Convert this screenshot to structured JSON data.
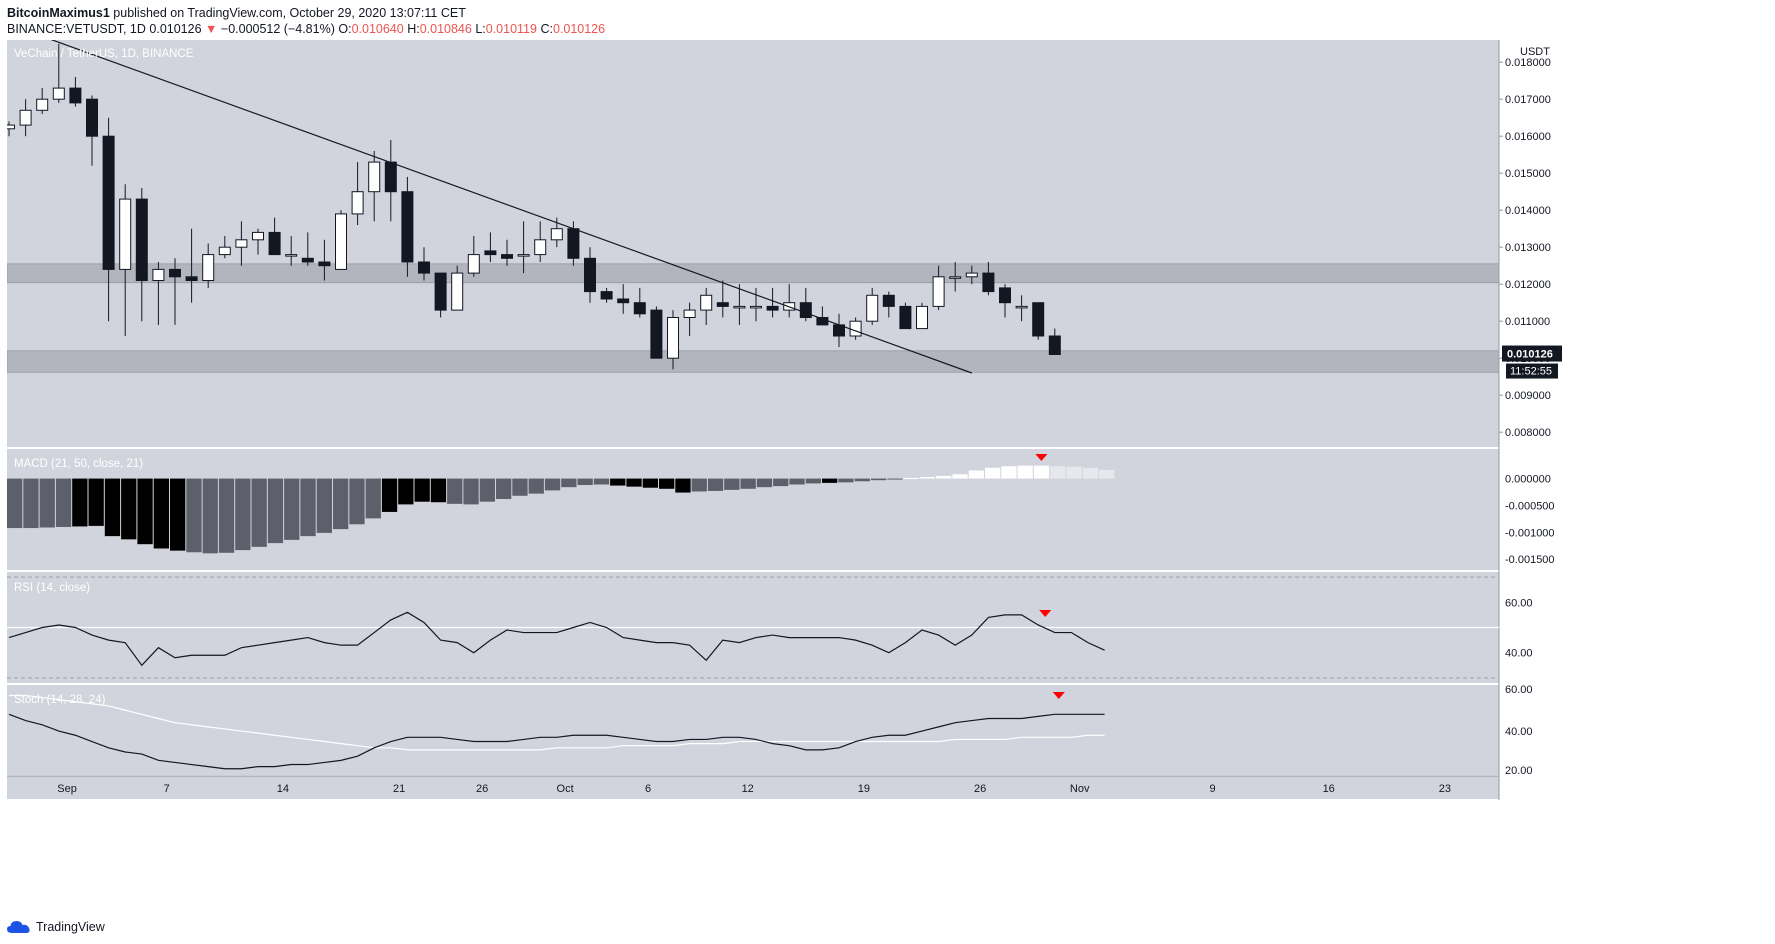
{
  "header": {
    "author": "BitcoinMaximus1",
    "published_text": " published on TradingView.com, October 29, 2020 13:07:11 CET"
  },
  "ohlc": {
    "symbol": "BINANCE:VETUSDT, 1D",
    "last": "0.010126",
    "change": "−0.000512 (−4.81%)",
    "o_label": "O:",
    "o": "0.010640",
    "h_label": "H:",
    "h": "0.010846",
    "l_label": "L:",
    "l": "0.010119",
    "c_label": "C:",
    "c": "0.010126"
  },
  "footer": {
    "brand": "TradingView"
  },
  "colors": {
    "background": "#d1d4dc",
    "up_candle": "#ffffff",
    "down_candle": "#131722",
    "zone": "#b2b5be",
    "macd_dark": "#000000",
    "macd_grey": "#5d606b",
    "macd_light": "#ffffff",
    "macd_light_fade": "#e6e8ee",
    "signal_arrow": "#ff0000",
    "stoch_d": "#ffffff"
  },
  "chart_data": [
    {
      "type": "candlestick",
      "title": "VeChain / TetherUS, 1D, BINANCE",
      "currency_label": "USDT",
      "ylim": [
        0.0076,
        0.0186
      ],
      "y_ticks": [
        "0.018000",
        "0.017000",
        "0.016000",
        "0.015000",
        "0.014000",
        "0.013000",
        "0.012000",
        "0.011000",
        "0.010000",
        "0.009000",
        "0.008000"
      ],
      "x_ticks": [
        "Sep",
        "7",
        "14",
        "21",
        "26",
        "Oct",
        "6",
        "12",
        "19",
        "26",
        "Nov",
        "9",
        "16",
        "23"
      ],
      "current_price_label": "0.010126",
      "countdown_label": "11:52:55",
      "ohlc": [
        [
          0.0162,
          0.0164,
          0.016,
          0.0163
        ],
        [
          0.0163,
          0.017,
          0.016,
          0.0167
        ],
        [
          0.0167,
          0.0173,
          0.0166,
          0.017
        ],
        [
          0.017,
          0.0185,
          0.0169,
          0.0173
        ],
        [
          0.0173,
          0.0176,
          0.0168,
          0.0169
        ],
        [
          0.017,
          0.0171,
          0.0152,
          0.016
        ],
        [
          0.016,
          0.0165,
          0.011,
          0.0124
        ],
        [
          0.0124,
          0.0147,
          0.0106,
          0.0143
        ],
        [
          0.0143,
          0.0146,
          0.011,
          0.0121
        ],
        [
          0.0121,
          0.0126,
          0.0109,
          0.0124
        ],
        [
          0.0124,
          0.0127,
          0.0109,
          0.0122
        ],
        [
          0.0122,
          0.0135,
          0.0115,
          0.0121
        ],
        [
          0.0121,
          0.0131,
          0.0119,
          0.0128
        ],
        [
          0.0128,
          0.0133,
          0.0127,
          0.013
        ],
        [
          0.013,
          0.0137,
          0.0125,
          0.0132
        ],
        [
          0.0132,
          0.0135,
          0.0128,
          0.0134
        ],
        [
          0.0134,
          0.0138,
          0.0128,
          0.0128
        ],
        [
          0.0128,
          0.0133,
          0.0125,
          0.0128
        ],
        [
          0.0127,
          0.0134,
          0.0125,
          0.0126
        ],
        [
          0.0126,
          0.0132,
          0.0121,
          0.0125
        ],
        [
          0.0124,
          0.014,
          0.0124,
          0.0139
        ],
        [
          0.0139,
          0.0153,
          0.0136,
          0.0145
        ],
        [
          0.0145,
          0.0156,
          0.0137,
          0.0153
        ],
        [
          0.0153,
          0.0159,
          0.0137,
          0.0145
        ],
        [
          0.0145,
          0.0149,
          0.0122,
          0.0126
        ],
        [
          0.0126,
          0.013,
          0.0121,
          0.0123
        ],
        [
          0.0123,
          0.0123,
          0.0111,
          0.0113
        ],
        [
          0.0113,
          0.0125,
          0.0113,
          0.0123
        ],
        [
          0.0123,
          0.0133,
          0.0122,
          0.0128
        ],
        [
          0.0129,
          0.0134,
          0.0126,
          0.0128
        ],
        [
          0.0128,
          0.0132,
          0.0125,
          0.0127
        ],
        [
          0.0128,
          0.0137,
          0.0123,
          0.0128
        ],
        [
          0.0128,
          0.0137,
          0.0126,
          0.0132
        ],
        [
          0.0132,
          0.0138,
          0.013,
          0.0135
        ],
        [
          0.0135,
          0.0137,
          0.0125,
          0.0127
        ],
        [
          0.0127,
          0.013,
          0.0115,
          0.0118
        ],
        [
          0.0118,
          0.0119,
          0.0115,
          0.0116
        ],
        [
          0.0116,
          0.012,
          0.0112,
          0.0115
        ],
        [
          0.0115,
          0.0119,
          0.0111,
          0.0112
        ],
        [
          0.0113,
          0.0114,
          0.01,
          0.01
        ],
        [
          0.01,
          0.0113,
          0.0097,
          0.0111
        ],
        [
          0.0111,
          0.0115,
          0.0106,
          0.0113
        ],
        [
          0.0113,
          0.0119,
          0.0109,
          0.0117
        ],
        [
          0.0115,
          0.0121,
          0.0111,
          0.0114
        ],
        [
          0.0114,
          0.012,
          0.0109,
          0.0114
        ],
        [
          0.0114,
          0.0119,
          0.011,
          0.0114
        ],
        [
          0.0114,
          0.0119,
          0.0111,
          0.0113
        ],
        [
          0.0113,
          0.012,
          0.0111,
          0.0115
        ],
        [
          0.0115,
          0.0119,
          0.011,
          0.0111
        ],
        [
          0.0111,
          0.0114,
          0.0109,
          0.0109
        ],
        [
          0.0109,
          0.0112,
          0.0103,
          0.0106
        ],
        [
          0.0106,
          0.0111,
          0.0105,
          0.011
        ],
        [
          0.011,
          0.0119,
          0.0109,
          0.0117
        ],
        [
          0.0117,
          0.0118,
          0.0111,
          0.0114
        ],
        [
          0.0114,
          0.0115,
          0.0108,
          0.0108
        ],
        [
          0.0108,
          0.0115,
          0.0108,
          0.0114
        ],
        [
          0.0114,
          0.0125,
          0.0113,
          0.0122
        ],
        [
          0.0122,
          0.0126,
          0.0118,
          0.0122
        ],
        [
          0.0122,
          0.0125,
          0.012,
          0.0123
        ],
        [
          0.0123,
          0.0126,
          0.0117,
          0.0118
        ],
        [
          0.0119,
          0.012,
          0.0111,
          0.0115
        ],
        [
          0.0114,
          0.0117,
          0.011,
          0.0114
        ],
        [
          0.0115,
          0.0115,
          0.0105,
          0.0106
        ],
        [
          0.0106,
          0.0108,
          0.0101,
          0.0101
        ]
      ],
      "zones": [
        [
          0.01204,
          0.01255
        ],
        [
          0.00962,
          0.0102
        ]
      ],
      "trendline": [
        [
          2.0,
          0.0187
        ],
        [
          58.0,
          0.0096
        ]
      ]
    },
    {
      "type": "bar",
      "title": "MACD (21, 50, close, 21)",
      "ylim": [
        -0.0017,
        0.00055
      ],
      "y_ticks": [
        "0.000000",
        "-0.000500",
        "-0.001000",
        "-0.001500"
      ],
      "values": [
        -0.00092,
        -0.00092,
        -0.00091,
        -0.0009,
        -0.00089,
        -0.00088,
        -0.00107,
        -0.00113,
        -0.00122,
        -0.0013,
        -0.00134,
        -0.00137,
        -0.00139,
        -0.00138,
        -0.00133,
        -0.00127,
        -0.0012,
        -0.00114,
        -0.00107,
        -0.00101,
        -0.00094,
        -0.00085,
        -0.00074,
        -0.00062,
        -0.00048,
        -0.00043,
        -0.00044,
        -0.00047,
        -0.00048,
        -0.00043,
        -0.00038,
        -0.00032,
        -0.00028,
        -0.00022,
        -0.00016,
        -0.00012,
        -0.00011,
        -0.00013,
        -0.00015,
        -0.00017,
        -0.00019,
        -0.00026,
        -0.00024,
        -0.00023,
        -0.00021,
        -0.00019,
        -0.00016,
        -0.00014,
        -0.00011,
        -9e-05,
        -8e-05,
        -7e-05,
        -5e-05,
        -3e-05,
        -1e-05,
        1e-05,
        3e-05,
        5e-05,
        8e-05,
        0.00015,
        0.0002,
        0.00023,
        0.00024,
        0.00024,
        0.00023,
        0.00022,
        0.0002,
        0.00016
      ],
      "color_keys": [
        "grey",
        "grey",
        "grey",
        "grey",
        "dark",
        "dark",
        "dark",
        "dark",
        "dark",
        "dark",
        "dark",
        "grey",
        "grey",
        "grey",
        "grey",
        "grey",
        "grey",
        "grey",
        "grey",
        "grey",
        "grey",
        "grey",
        "grey",
        "dark",
        "dark",
        "dark",
        "dark",
        "grey",
        "grey",
        "grey",
        "grey",
        "grey",
        "grey",
        "grey",
        "grey",
        "grey",
        "grey",
        "dark",
        "dark",
        "dark",
        "dark",
        "dark",
        "grey",
        "grey",
        "grey",
        "grey",
        "grey",
        "grey",
        "grey",
        "grey",
        "dark",
        "grey",
        "grey",
        "grey",
        "grey",
        "light",
        "light",
        "light",
        "light",
        "light",
        "light",
        "light",
        "light",
        "light",
        "fade",
        "fade",
        "fade",
        "fade"
      ]
    },
    {
      "type": "line",
      "title": "RSI (14, close)",
      "ylim": [
        28,
        72
      ],
      "y_ticks": [
        "60.00",
        "40.00"
      ],
      "bands": [
        70,
        50,
        30
      ],
      "values": [
        46,
        48,
        50,
        51,
        50,
        47,
        45,
        44,
        35,
        42,
        38,
        39,
        39,
        39,
        42,
        43,
        44,
        45,
        46,
        44,
        43,
        43,
        48,
        53,
        56,
        52,
        45,
        44,
        40,
        45,
        49,
        48,
        48,
        48,
        50,
        52,
        50,
        46,
        45,
        44,
        44,
        43,
        37,
        45,
        44,
        46,
        47,
        46,
        46,
        46,
        46,
        45,
        43,
        40,
        44,
        49,
        47,
        43,
        47,
        54,
        55,
        55,
        51,
        48,
        48,
        44,
        41
      ],
      "signal_markers_at": [
        62
      ]
    },
    {
      "type": "line",
      "title": "Stoch (14, 28, 24)",
      "ylim": [
        19,
        62
      ],
      "y_ticks": [
        "60.00",
        "40.00",
        "20.00"
      ],
      "k_values": [
        48,
        45,
        43,
        40,
        38,
        35,
        32,
        30,
        29,
        26,
        25,
        24,
        23,
        22,
        22,
        23,
        23,
        24,
        24,
        25,
        26,
        28,
        32,
        35,
        37,
        37,
        37,
        36,
        35,
        35,
        35,
        36,
        37,
        37,
        38,
        38,
        38,
        37,
        36,
        35,
        35,
        36,
        36,
        37,
        37,
        36,
        34,
        33,
        31,
        31,
        32,
        35,
        37,
        38,
        38,
        40,
        42,
        44,
        45,
        46,
        46,
        46,
        47,
        48,
        48,
        48,
        48
      ],
      "d_values": [
        57,
        57,
        56,
        55,
        54,
        53,
        52,
        50,
        48,
        46,
        44,
        43,
        42,
        41,
        40,
        39,
        38,
        37,
        36,
        35,
        34,
        33,
        32,
        32,
        31,
        31,
        31,
        31,
        31,
        31,
        31,
        31,
        31,
        32,
        32,
        32,
        32,
        33,
        33,
        33,
        33,
        34,
        34,
        34,
        35,
        35,
        35,
        35,
        35,
        35,
        35,
        35,
        35,
        35,
        35,
        35,
        35,
        36,
        36,
        36,
        36,
        37,
        37,
        37,
        37,
        38,
        38
      ],
      "signal_markers_at": [
        63
      ]
    }
  ],
  "macd_signal_markers_at": [
    63
  ]
}
